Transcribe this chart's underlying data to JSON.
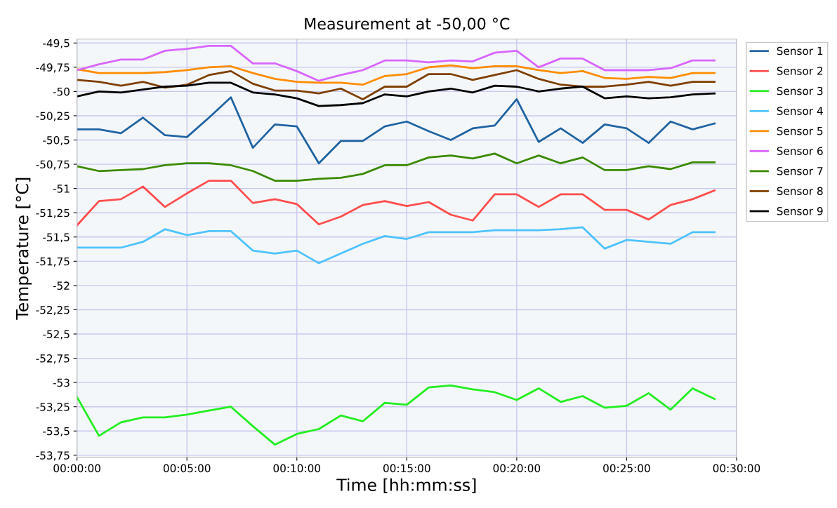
{
  "chart_data": {
    "type": "line",
    "title": "Measurement at -50,00 °C",
    "xlabel": "Time [hh:mm:ss]",
    "ylabel": "Temperature [°C]",
    "x": [
      0,
      1,
      2,
      3,
      4,
      5,
      6,
      7,
      8,
      9,
      10,
      11,
      12,
      13,
      14,
      15,
      16,
      17,
      18,
      19,
      20,
      21,
      22,
      23,
      24,
      25,
      26,
      27,
      28,
      29
    ],
    "series": [
      {
        "name": "Sensor 1",
        "color": "#1f64a3",
        "values": [
          -50.39,
          -50.39,
          -50.43,
          -50.27,
          -50.45,
          -50.47,
          -50.27,
          -50.06,
          -50.58,
          -50.34,
          -50.36,
          -50.74,
          -50.51,
          -50.51,
          -50.36,
          -50.31,
          -50.41,
          -50.5,
          -50.38,
          -50.35,
          -50.08,
          -50.52,
          -50.38,
          -50.53,
          -50.34,
          -50.38,
          -50.53,
          -50.31,
          -50.39,
          -50.33
        ]
      },
      {
        "name": "Sensor 2",
        "color": "#ff4d4d",
        "values": [
          -51.38,
          -51.13,
          -51.11,
          -50.98,
          -51.19,
          -51.05,
          -50.92,
          -50.92,
          -51.15,
          -51.11,
          -51.16,
          -51.37,
          -51.29,
          -51.17,
          -51.13,
          -51.18,
          -51.14,
          -51.27,
          -51.33,
          -51.06,
          -51.06,
          -51.19,
          -51.06,
          -51.06,
          -51.22,
          -51.22,
          -51.32,
          -51.17,
          -51.11,
          -51.02
        ]
      },
      {
        "name": "Sensor 3",
        "color": "#22ee22",
        "values": [
          -53.15,
          -53.55,
          -53.41,
          -53.36,
          -53.36,
          -53.33,
          -53.29,
          -53.25,
          -53.45,
          -53.64,
          -53.53,
          -53.48,
          -53.34,
          -53.4,
          -53.21,
          -53.23,
          -53.05,
          -53.03,
          -53.07,
          -53.1,
          -53.18,
          -53.06,
          -53.2,
          -53.14,
          -53.26,
          -53.24,
          -53.11,
          -53.28,
          -53.06,
          -53.17
        ]
      },
      {
        "name": "Sensor 4",
        "color": "#4dc3ff",
        "values": [
          -51.61,
          -51.61,
          -51.61,
          -51.55,
          -51.42,
          -51.48,
          -51.44,
          -51.44,
          -51.64,
          -51.67,
          -51.64,
          -51.77,
          -51.67,
          -51.57,
          -51.49,
          -51.52,
          -51.45,
          -51.45,
          -51.45,
          -51.43,
          -51.43,
          -51.43,
          -51.42,
          -51.4,
          -51.62,
          -51.53,
          -51.55,
          -51.57,
          -51.45,
          -51.45
        ]
      },
      {
        "name": "Sensor 5",
        "color": "#ff8c00",
        "values": [
          -49.77,
          -49.81,
          -49.81,
          -49.81,
          -49.8,
          -49.78,
          -49.75,
          -49.74,
          -49.81,
          -49.87,
          -49.9,
          -49.91,
          -49.91,
          -49.93,
          -49.84,
          -49.82,
          -49.75,
          -49.73,
          -49.76,
          -49.74,
          -49.74,
          -49.78,
          -49.81,
          -49.79,
          -49.86,
          -49.87,
          -49.85,
          -49.86,
          -49.81,
          -49.81
        ]
      },
      {
        "name": "Sensor 6",
        "color": "#d966ff",
        "values": [
          -49.78,
          -49.72,
          -49.67,
          -49.67,
          -49.58,
          -49.56,
          -49.53,
          -49.53,
          -49.71,
          -49.71,
          -49.79,
          -49.89,
          -49.83,
          -49.78,
          -49.68,
          -49.68,
          -49.7,
          -49.68,
          -49.69,
          -49.6,
          -49.58,
          -49.75,
          -49.66,
          -49.66,
          -49.78,
          -49.78,
          -49.78,
          -49.76,
          -49.68,
          -49.68
        ]
      },
      {
        "name": "Sensor 7",
        "color": "#3a8a00",
        "values": [
          -50.77,
          -50.82,
          -50.81,
          -50.8,
          -50.76,
          -50.74,
          -50.74,
          -50.76,
          -50.82,
          -50.92,
          -50.92,
          -50.9,
          -50.89,
          -50.85,
          -50.76,
          -50.76,
          -50.68,
          -50.66,
          -50.69,
          -50.64,
          -50.74,
          -50.66,
          -50.74,
          -50.68,
          -50.81,
          -50.81,
          -50.77,
          -50.8,
          -50.73,
          -50.73
        ]
      },
      {
        "name": "Sensor 8",
        "color": "#7f3f00",
        "values": [
          -49.88,
          -49.9,
          -49.94,
          -49.9,
          -49.96,
          -49.93,
          -49.83,
          -49.79,
          -49.92,
          -49.99,
          -49.99,
          -50.02,
          -49.97,
          -50.08,
          -49.95,
          -49.95,
          -49.82,
          -49.82,
          -49.88,
          -49.83,
          -49.78,
          -49.87,
          -49.93,
          -49.95,
          -49.95,
          -49.93,
          -49.9,
          -49.94,
          -49.9,
          -49.9
        ]
      },
      {
        "name": "Sensor 9",
        "color": "#000000",
        "values": [
          -50.05,
          -50.0,
          -50.01,
          -49.98,
          -49.95,
          -49.94,
          -49.91,
          -49.91,
          -50.01,
          -50.03,
          -50.07,
          -50.15,
          -50.14,
          -50.12,
          -50.03,
          -50.05,
          -50.0,
          -49.97,
          -50.01,
          -49.94,
          -49.95,
          -50.0,
          -49.97,
          -49.95,
          -50.07,
          -50.05,
          -50.07,
          -50.06,
          -50.03,
          -50.02
        ]
      }
    ],
    "xlim": [
      0,
      30
    ],
    "xticks": [
      {
        "value": 0,
        "label": "00:00:00"
      },
      {
        "value": 5,
        "label": "00:05:00"
      },
      {
        "value": 10,
        "label": "00:10:00"
      },
      {
        "value": 15,
        "label": "00:15:00"
      },
      {
        "value": 20,
        "label": "00:20:00"
      },
      {
        "value": 25,
        "label": "00:25:00"
      },
      {
        "value": 30,
        "label": "00:30:00"
      }
    ],
    "ylim": [
      -53.77,
      -49.46
    ],
    "yticks": [
      {
        "value": -49.5,
        "label": "-49,5"
      },
      {
        "value": -49.75,
        "label": "-49,75"
      },
      -50,
      {
        "value": -50.25,
        "label": "-50,25"
      },
      {
        "value": -50.5,
        "label": "-50,5"
      },
      {
        "value": -50.75,
        "label": "-50,75"
      },
      -51,
      {
        "value": -51.25,
        "label": "-51,25"
      },
      {
        "value": -51.5,
        "label": "-51,5"
      },
      {
        "value": -51.75,
        "label": "-51,75"
      },
      -52,
      {
        "value": -52.25,
        "label": "-52,25"
      },
      {
        "value": -52.5,
        "label": "-52,5"
      },
      {
        "value": -52.75,
        "label": "-52,75"
      },
      -53,
      {
        "value": -53.25,
        "label": "-53,25"
      },
      {
        "value": -53.5,
        "label": "-53,5"
      },
      {
        "value": -53.75,
        "label": "-53,75"
      }
    ],
    "grid": true,
    "legend": "right",
    "marker": "none",
    "line_style": "solid"
  }
}
